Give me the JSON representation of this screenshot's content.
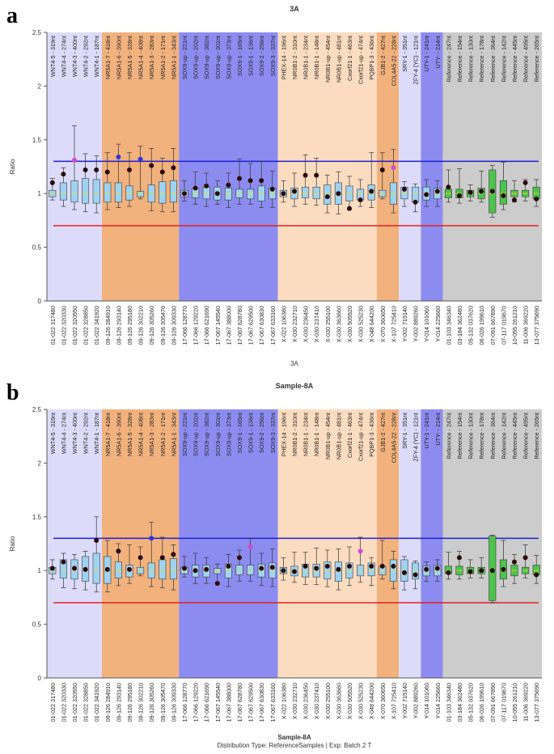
{
  "panel_labels": [
    "a",
    "b"
  ],
  "colors": {
    "band_lavender": "#dcdcfa",
    "band_orange": "#f2b27e",
    "band_blue": "#8c8cf0",
    "band_peach": "#fbdcc0",
    "band_gray": "#cccccc",
    "upper_line": "#1f1fd0",
    "lower_line": "#e52020",
    "box_blue": "#9fd3f0",
    "box_green": "#4ec24e",
    "median": "#f0e020",
    "point": "#2a0a0a",
    "point_blue": "#3434e0",
    "point_magenta": "#d04ad0"
  },
  "categories": [
    "01-022 317480",
    "01-022 320330",
    "01-022 320550",
    "01-022 328850",
    "01-022 341920",
    "09-126 284910",
    "09-126 293140",
    "09-126 295180",
    "09-126 302210",
    "09-126 305260",
    "09-126 305470",
    "09-126 309330",
    "17-066 128770",
    "17-066 129220",
    "17-066 621690",
    "17-067 145540",
    "17-067 388000",
    "17-067 628780",
    "17-067 629500",
    "17-067 630830",
    "17-067 633160",
    "X-022 106380",
    "X-030 232710",
    "X-030 236450",
    "X-030 237410",
    "X-030 255100",
    "X-030 363660",
    "X-030 505520",
    "X-030 525230",
    "X-048 644200",
    "X-070 360650",
    "X-107 725410",
    "Y-002 715140",
    "Y-002 889260",
    "Y-014 101060",
    "Y-014 225660",
    "01-103 346340",
    "03-184 362480",
    "05-132 037620",
    "06-026 199610",
    "07-091 667890",
    "07-117 019670",
    "10-055 261210",
    "11-006 369220",
    "13-077 375690"
  ],
  "probe_labels": [
    "WNT4-5 - 319nt",
    "WNT4-4 - 274nt",
    "WNT4-3 - 400nt",
    "WNT4-2 - 292nt",
    "WNT4-1 - 187nt",
    "NR5A1-7 - 418nt",
    "NR5A1-6 - 390nt",
    "NR5A1-5 - 328nt",
    "NR5A1-4 - 408nt",
    "NR5A1-3 - 283nt",
    "NR5A1-2 - 171nt",
    "NR5A1-1 - 343nt",
    "SOX9-up - 221nt",
    "SOX9-up - 202nt",
    "SOX9-up - 382nt",
    "SOX9-up - 301nt",
    "SOX9-up - 373nt",
    "SOX9-1 - 165nt",
    "SOX9-1 - 136nt",
    "SOX9-2 - 256nt",
    "SOX9-3 - 337nt",
    "PHEX-14 - 196nt",
    "NR0B1-2 - 310nt",
    "NR0B1-1 - 234nt",
    "NR0B1-1 - 148nt",
    "NR0B1-up - 454nt",
    "NR0B1-up - 481nt",
    "Cxorf21-1 - 463nt",
    "Cxorf21-up - 474nt",
    "PQBP1-3 - 436nt",
    "GJB1-2 - 427nt",
    "COL4A5-22 - 228nt",
    "SRY-1 - 351nt",
    "ZFY-4 (YC) - 121nt",
    "UTY-1 - 241nt",
    "UTY- - 214nt",
    "Reference - 247nt",
    "Reference - 154nt",
    "Reference - 130nt",
    "Reference - 178nt",
    "Reference - 364nt",
    "Reference - 142nt",
    "Reference - 445nt",
    "Reference - 495nt",
    "Reference - 265nt"
  ],
  "bands": [
    {
      "start": 0,
      "end": 4,
      "color": "#dcdcfa"
    },
    {
      "start": 5,
      "end": 11,
      "color": "#f2b27e"
    },
    {
      "start": 12,
      "end": 20,
      "color": "#8c8cf0"
    },
    {
      "start": 21,
      "end": 29,
      "color": "#fbdcc0"
    },
    {
      "start": 30,
      "end": 31,
      "color": "#f2b27e"
    },
    {
      "start": 32,
      "end": 33,
      "color": "#dcdcfa"
    },
    {
      "start": 34,
      "end": 35,
      "color": "#8c8cf0"
    },
    {
      "start": 36,
      "end": 44,
      "color": "#cccccc"
    }
  ],
  "chart_data": [
    {
      "type": "box",
      "title": "3A",
      "xlabel": "3A",
      "ylabel": "Ratio",
      "ylim": [
        0,
        2.5
      ],
      "yticks": [
        "0",
        "0.5",
        "1",
        "1.5",
        "2",
        "2.5"
      ],
      "upper_threshold": 1.3,
      "lower_threshold": 0.7,
      "points": [
        1.1,
        1.18,
        1.31,
        1.22,
        1.22,
        1.2,
        1.34,
        1.22,
        1.32,
        1.26,
        1.2,
        1.24,
        1.0,
        1.05,
        1.07,
        1.0,
        1.08,
        1.14,
        1.12,
        1.12,
        1.04,
        1.0,
        1.02,
        1.17,
        1.17,
        0.97,
        1.0,
        0.86,
        0.94,
        1.02,
        1.22,
        1.24,
        1.04,
        0.92,
        0.99,
        1.02,
        1.06,
        0.98,
        1.01,
        1.02,
        1.02,
        0.98,
        0.94,
        1.1,
        0.95
      ],
      "point_colors": [
        "d",
        "d",
        "m",
        "d",
        "d",
        "d",
        "b",
        "d",
        "b",
        "d",
        "d",
        "d",
        "d",
        "d",
        "d",
        "d",
        "d",
        "d",
        "d",
        "d",
        "d",
        "d",
        "d",
        "d",
        "d",
        "d",
        "d",
        "d",
        "d",
        "d",
        "d",
        "m",
        "d",
        "d",
        "d",
        "d",
        "d",
        "d",
        "d",
        "d",
        "d",
        "d",
        "d",
        "d",
        "d"
      ],
      "boxes": [
        [
          0.97,
          1.03,
          0.94,
          1.14
        ],
        [
          0.94,
          1.1,
          0.88,
          1.24
        ],
        [
          0.92,
          1.12,
          0.85,
          1.63
        ],
        [
          0.91,
          1.14,
          0.83,
          1.37
        ],
        [
          0.91,
          1.13,
          0.82,
          1.35
        ],
        [
          0.92,
          1.1,
          0.85,
          1.38
        ],
        [
          0.92,
          1.1,
          0.87,
          1.46
        ],
        [
          0.94,
          1.07,
          0.88,
          1.38
        ],
        [
          0.97,
          1.02,
          0.95,
          1.44
        ],
        [
          0.92,
          1.08,
          0.84,
          1.42
        ],
        [
          0.91,
          1.11,
          0.83,
          1.33
        ],
        [
          0.92,
          1.12,
          0.83,
          1.42
        ],
        [
          0.97,
          1.03,
          0.93,
          1.12
        ],
        [
          0.96,
          1.05,
          0.9,
          1.2
        ],
        [
          0.95,
          1.06,
          0.88,
          1.19
        ],
        [
          0.94,
          1.06,
          0.9,
          1.12
        ],
        [
          0.94,
          1.05,
          0.87,
          1.19
        ],
        [
          0.96,
          1.04,
          0.9,
          1.32
        ],
        [
          0.95,
          1.04,
          0.9,
          1.28
        ],
        [
          0.93,
          1.07,
          0.87,
          1.3
        ],
        [
          0.95,
          1.05,
          0.87,
          1.21
        ],
        [
          0.97,
          1.03,
          0.92,
          1.12
        ],
        [
          0.95,
          1.05,
          0.88,
          1.19
        ],
        [
          0.96,
          1.06,
          0.9,
          1.36
        ],
        [
          0.95,
          1.06,
          0.89,
          1.33
        ],
        [
          0.9,
          1.08,
          0.82,
          1.17
        ],
        [
          0.9,
          1.1,
          0.81,
          1.2
        ],
        [
          0.93,
          1.07,
          0.85,
          1.16
        ],
        [
          0.94,
          1.04,
          0.88,
          1.13
        ],
        [
          0.94,
          1.08,
          0.87,
          1.38
        ],
        [
          0.97,
          1.03,
          0.95,
          1.38
        ],
        [
          0.9,
          1.1,
          0.82,
          1.41
        ],
        [
          0.95,
          1.06,
          0.88,
          1.11
        ],
        [
          0.92,
          1.06,
          0.83,
          1.09
        ],
        [
          0.94,
          1.06,
          0.88,
          1.13
        ],
        [
          0.95,
          1.05,
          0.88,
          1.12
        ],
        [
          0.96,
          1.04,
          0.92,
          1.22
        ],
        [
          0.96,
          1.04,
          0.91,
          1.23
        ],
        [
          0.97,
          1.03,
          0.93,
          1.08
        ],
        [
          0.95,
          1.05,
          0.92,
          1.21
        ],
        [
          0.82,
          1.22,
          0.78,
          1.26
        ],
        [
          0.9,
          1.12,
          0.85,
          1.29
        ],
        [
          0.97,
          1.03,
          0.92,
          1.12
        ],
        [
          0.97,
          1.03,
          0.93,
          1.13
        ],
        [
          0.95,
          1.06,
          0.88,
          1.13
        ]
      ]
    },
    {
      "type": "box",
      "title": "Sample-8A",
      "xlabel": "Sample-8A",
      "subtitle": "Distribution Type: ReferenceSamples | Exp: Batch 2 T",
      "ylabel": "Ratio",
      "ylim": [
        0,
        2.5
      ],
      "yticks": [
        "0",
        "0.5",
        "1",
        "1.5",
        "2",
        "2.5"
      ],
      "upper_threshold": 1.3,
      "lower_threshold": 0.7,
      "points": [
        1.02,
        1.08,
        1.02,
        1.01,
        1.28,
        1.01,
        1.18,
        1.01,
        1.12,
        1.3,
        1.12,
        1.15,
        1.02,
        1.0,
        1.01,
        0.88,
        1.04,
        1.12,
        1.22,
        1.02,
        1.03,
        1.0,
        0.99,
        1.04,
        1.02,
        1.04,
        1.01,
        1.04,
        1.18,
        1.04,
        1.04,
        1.04,
        0.98,
        0.96,
        1.01,
        1.02,
        0.98,
        1.12,
        0.99,
        1.0,
        1.0,
        1.01,
        1.08,
        1.12,
        0.96
      ],
      "point_colors": [
        "d",
        "d",
        "d",
        "d",
        "d",
        "d",
        "d",
        "d",
        "d",
        "b",
        "d",
        "d",
        "d",
        "d",
        "d",
        "d",
        "d",
        "d",
        "m",
        "d",
        "d",
        "d",
        "d",
        "d",
        "d",
        "d",
        "d",
        "d",
        "m",
        "d",
        "d",
        "d",
        "d",
        "d",
        "d",
        "d",
        "d",
        "d",
        "d",
        "d",
        "d",
        "d",
        "d",
        "d",
        "d"
      ],
      "boxes": [
        [
          0.97,
          1.03,
          0.92,
          1.1
        ],
        [
          0.93,
          1.1,
          0.84,
          1.16
        ],
        [
          0.92,
          1.1,
          0.83,
          1.15
        ],
        [
          0.9,
          1.13,
          0.82,
          1.18
        ],
        [
          0.88,
          1.16,
          0.8,
          1.5
        ],
        [
          0.88,
          1.13,
          0.8,
          1.28
        ],
        [
          0.93,
          1.08,
          0.86,
          1.25
        ],
        [
          0.94,
          1.05,
          0.88,
          1.24
        ],
        [
          0.97,
          1.03,
          0.95,
          1.22
        ],
        [
          0.93,
          1.07,
          0.85,
          1.45
        ],
        [
          0.92,
          1.1,
          0.84,
          1.31
        ],
        [
          0.92,
          1.11,
          0.82,
          1.24
        ],
        [
          0.97,
          1.03,
          0.94,
          1.13
        ],
        [
          0.94,
          1.05,
          0.88,
          1.16
        ],
        [
          0.94,
          1.05,
          0.88,
          1.12
        ],
        [
          0.97,
          1.02,
          0.88,
          1.06
        ],
        [
          0.93,
          1.06,
          0.85,
          1.15
        ],
        [
          0.96,
          1.05,
          0.9,
          1.19
        ],
        [
          0.96,
          1.05,
          0.9,
          1.3
        ],
        [
          0.94,
          1.06,
          0.86,
          1.16
        ],
        [
          0.93,
          1.07,
          0.85,
          1.2
        ],
        [
          0.97,
          1.03,
          0.91,
          1.12
        ],
        [
          0.95,
          1.04,
          0.89,
          1.17
        ],
        [
          0.94,
          1.06,
          0.87,
          1.17
        ],
        [
          0.94,
          1.06,
          0.87,
          1.21
        ],
        [
          0.92,
          1.08,
          0.85,
          1.19
        ],
        [
          0.9,
          1.08,
          0.82,
          1.2
        ],
        [
          0.93,
          1.07,
          0.86,
          1.22
        ],
        [
          0.95,
          1.05,
          0.89,
          1.31
        ],
        [
          0.95,
          1.07,
          0.86,
          1.12
        ],
        [
          0.96,
          1.04,
          0.92,
          1.28
        ],
        [
          0.9,
          1.1,
          0.83,
          1.18
        ],
        [
          0.9,
          1.1,
          0.82,
          1.13
        ],
        [
          0.92,
          1.07,
          0.83,
          1.09
        ],
        [
          0.95,
          1.04,
          0.9,
          1.08
        ],
        [
          0.95,
          1.05,
          0.9,
          1.1
        ],
        [
          0.97,
          1.04,
          0.92,
          1.17
        ],
        [
          0.96,
          1.04,
          0.92,
          1.18
        ],
        [
          0.97,
          1.03,
          0.93,
          1.1
        ],
        [
          0.97,
          1.03,
          0.93,
          1.12
        ],
        [
          0.72,
          1.32,
          0.7,
          1.33
        ],
        [
          0.92,
          1.1,
          0.85,
          1.28
        ],
        [
          0.95,
          1.05,
          0.88,
          1.15
        ],
        [
          0.97,
          1.03,
          0.93,
          1.24
        ],
        [
          0.96,
          1.05,
          0.88,
          1.14
        ]
      ]
    }
  ]
}
